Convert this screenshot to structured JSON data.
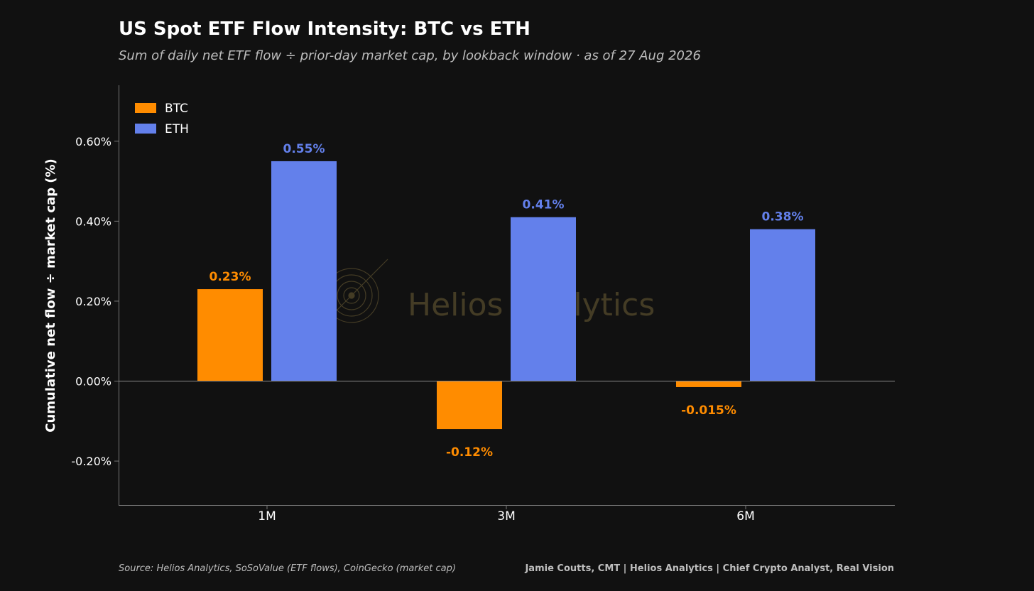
{
  "chart_data": {
    "type": "bar",
    "title": "US Spot ETF Flow Intensity: BTC vs ETH",
    "subtitle": "Sum of daily net ETF flow ÷ prior-day market cap, by lookback window · as of 27 Aug 2026",
    "xlabel": "",
    "ylabel": "Cumulative net flow ÷ market cap (%)",
    "categories": [
      "1M",
      "3M",
      "6M"
    ],
    "series": [
      {
        "name": "BTC",
        "color": "#ff8c00",
        "values": [
          0.23,
          -0.12,
          -0.015
        ],
        "labels": [
          "0.23%",
          "-0.12%",
          "-0.015%"
        ]
      },
      {
        "name": "ETH",
        "color": "#6380eb",
        "values": [
          0.55,
          0.41,
          0.38
        ],
        "labels": [
          "0.55%",
          "0.41%",
          "0.38%"
        ]
      }
    ],
    "ylim": [
      -0.31,
      0.74
    ],
    "yticks": [
      {
        "value": 0.6,
        "label": "0.60%"
      },
      {
        "value": 0.4,
        "label": "0.40%"
      },
      {
        "value": 0.2,
        "label": "0.20%"
      },
      {
        "value": 0.0,
        "label": "0.00%"
      },
      {
        "value": -0.2,
        "label": "-0.20%"
      }
    ],
    "grid": false,
    "legend_position": "top-left",
    "watermark": "Helios Analytics"
  },
  "footer": {
    "source": "Source: Helios Analytics, SoSoValue (ETF flows), CoinGecko (market cap)",
    "credit": "Jamie Coutts, CMT | Helios Analytics | Chief Crypto Analyst, Real Vision"
  },
  "colors": {
    "background": "#111111",
    "axis": "#777777",
    "text": "#ffffff",
    "watermark": "#4a4128"
  }
}
